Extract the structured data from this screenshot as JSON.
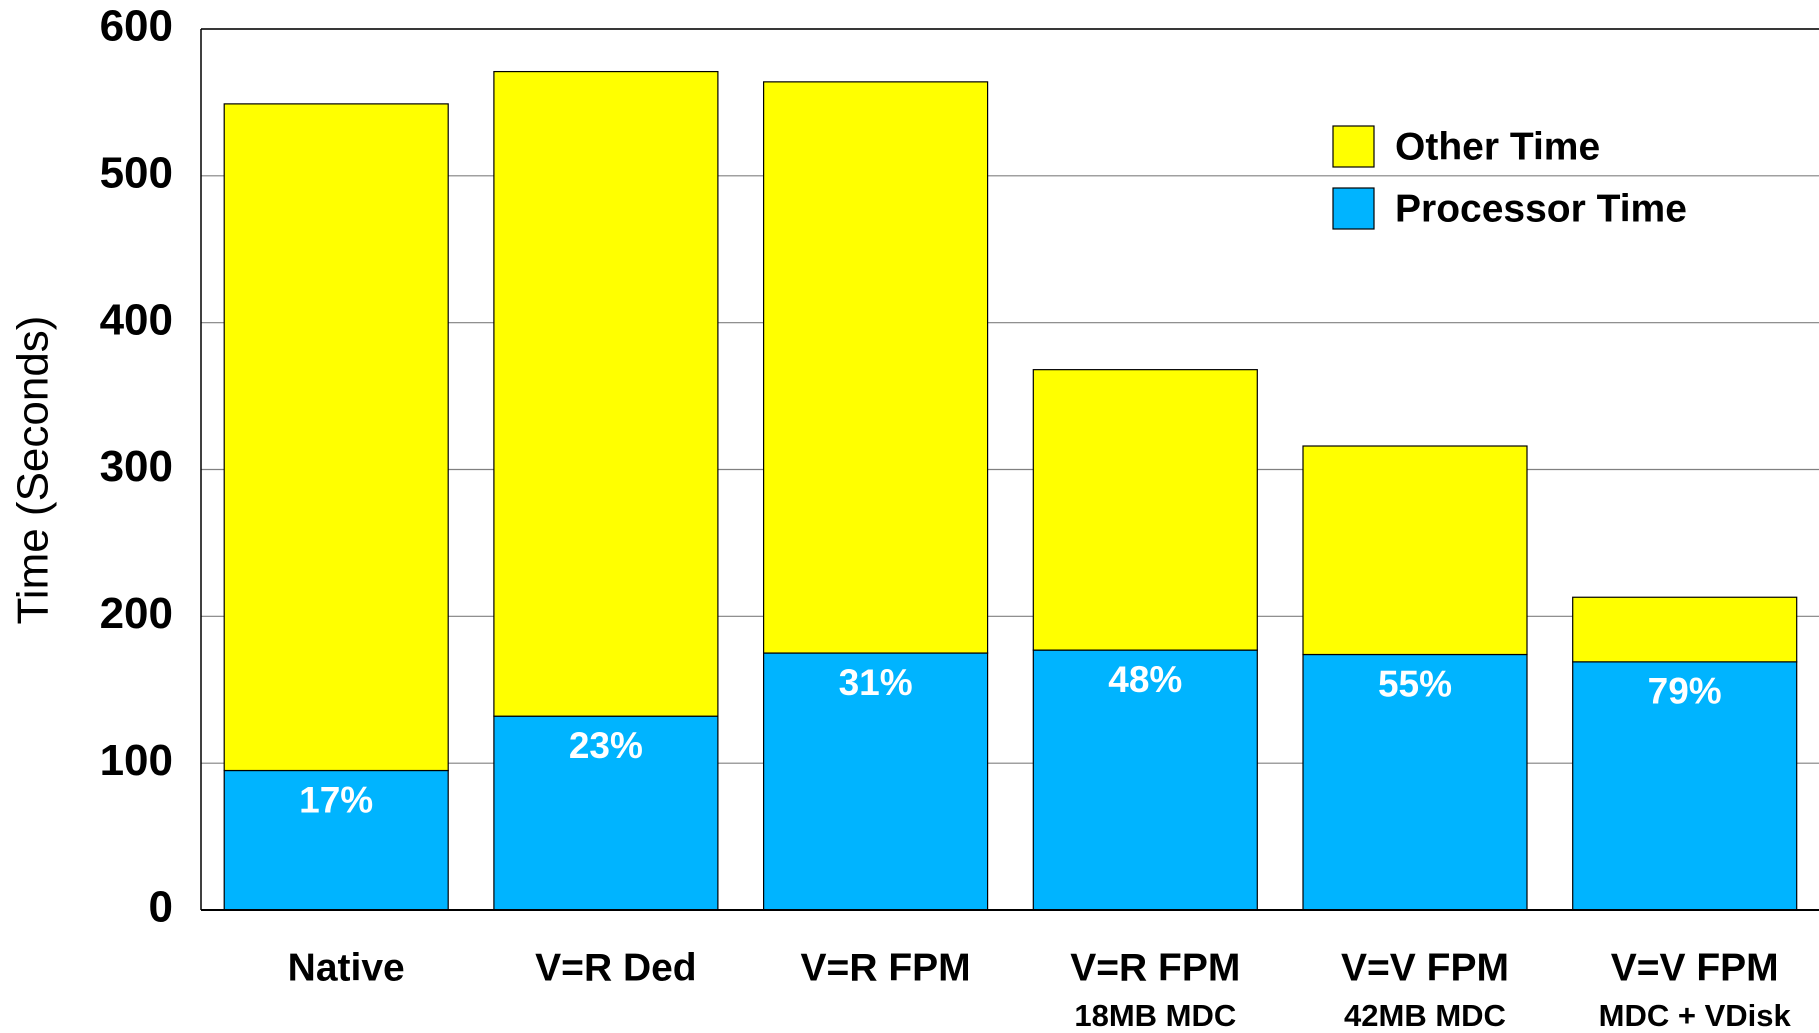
{
  "chart_data": {
    "type": "stacked_bar",
    "y_label": "Time (Seconds)",
    "categories": [
      [
        "Native"
      ],
      [
        "V=R Ded"
      ],
      [
        "V=R FPM"
      ],
      [
        "V=R FPM",
        "18MB MDC"
      ],
      [
        "V=V FPM",
        "42MB MDC"
      ],
      [
        "V=V FPM",
        "MDC + VDisk"
      ]
    ],
    "series": [
      {
        "name": "Processor Time",
        "color": "#00b4ff",
        "values": [
          95,
          132,
          175,
          177,
          174,
          169
        ]
      },
      {
        "name": "Other Time",
        "color": "#ffff00",
        "values": [
          454,
          439,
          389,
          191,
          142,
          44
        ]
      }
    ],
    "processor_share_labels": [
      "17%",
      "23%",
      "31%",
      "48%",
      "55%",
      "79%"
    ],
    "ylim": [
      0,
      600
    ],
    "yticks": [
      0,
      100,
      200,
      300,
      400,
      500,
      600
    ],
    "grid": true,
    "legend": "upper right"
  }
}
